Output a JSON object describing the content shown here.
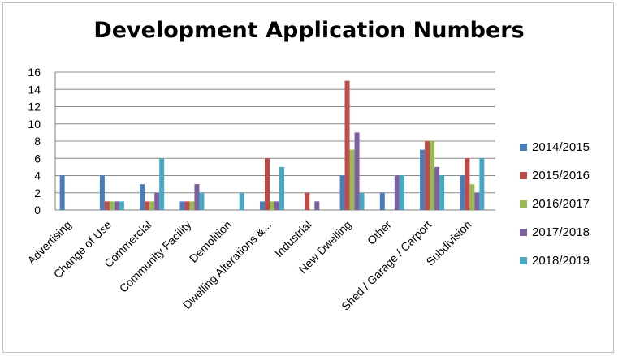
{
  "chart_data": {
    "type": "bar",
    "title": "Development Application Numbers",
    "xlabel": "",
    "ylabel": "",
    "ylim": [
      0,
      16
    ],
    "yticks": [
      0,
      2,
      4,
      6,
      8,
      10,
      12,
      14,
      16
    ],
    "grid": true,
    "legend_position": "right",
    "categories": [
      "Advertising",
      "Change of Use",
      "Commercial",
      "Community Facility",
      "Demolition",
      "Dwelling Alterations &...",
      "Industrial",
      "New Dwelling",
      "Other",
      "Shed / Garage / Carport",
      "Subdivision"
    ],
    "series": [
      {
        "name": "2014/2015",
        "color": "#4a7ebb",
        "values": [
          4,
          4,
          3,
          1,
          0,
          1,
          0,
          4,
          2,
          7,
          4
        ]
      },
      {
        "name": "2015/2016",
        "color": "#be4b48",
        "values": [
          0,
          1,
          1,
          1,
          0,
          6,
          2,
          15,
          0,
          8,
          6
        ]
      },
      {
        "name": "2016/2017",
        "color": "#98b954",
        "values": [
          0,
          1,
          1,
          1,
          0,
          1,
          0,
          7,
          0,
          8,
          3
        ]
      },
      {
        "name": "2017/2018",
        "color": "#7d60a0",
        "values": [
          0,
          1,
          2,
          3,
          0,
          1,
          1,
          9,
          4,
          5,
          2
        ]
      },
      {
        "name": "2018/2019",
        "color": "#46aac5",
        "values": [
          0,
          1,
          6,
          2,
          2,
          5,
          0,
          2,
          4,
          4,
          6
        ]
      }
    ]
  }
}
